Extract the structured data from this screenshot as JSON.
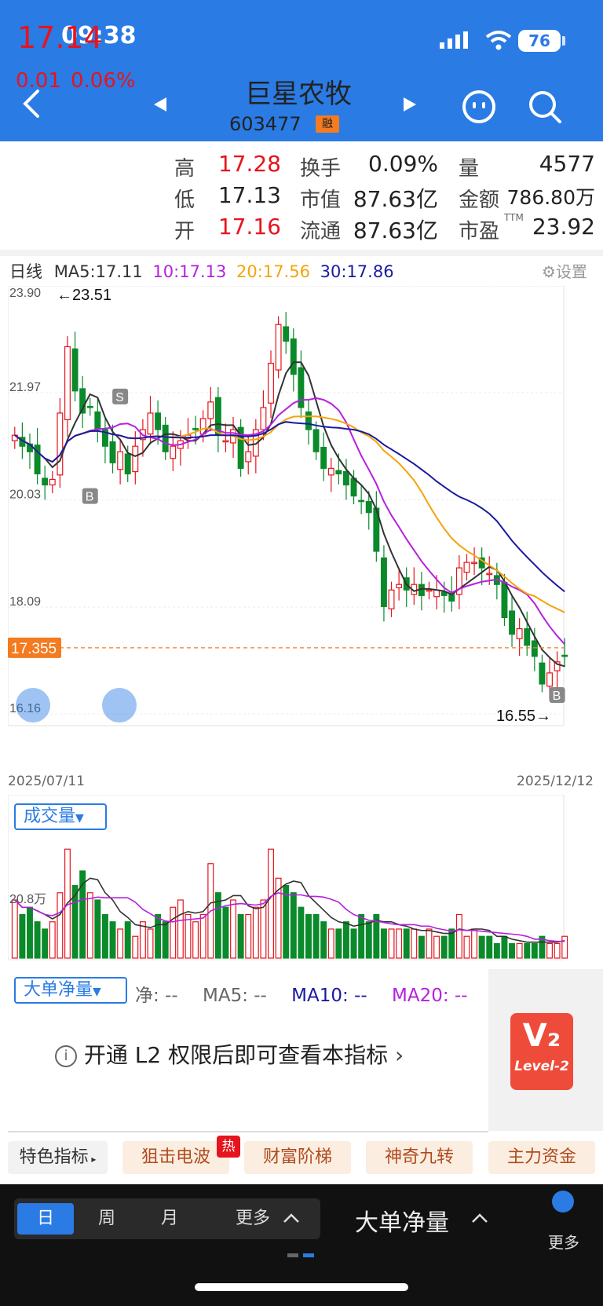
{
  "status_bar": {
    "time": "09:38",
    "battery": "76"
  },
  "header": {
    "stock_name": "巨星农牧",
    "stock_code": "603477",
    "margin_badge": "融"
  },
  "quote": {
    "price": "17.14",
    "change": "0.01",
    "change_pct": "0.06%",
    "high_label": "高",
    "high": "17.28",
    "low_label": "低",
    "low": "17.13",
    "open_label": "开",
    "open": "17.16",
    "turnover_label": "换手",
    "turnover": "0.09%",
    "mktcap_label": "市值",
    "mktcap": "87.63亿",
    "float_label": "流通",
    "float_cap": "87.63亿",
    "volume_label": "量",
    "volume": "4577",
    "amount_label": "金额",
    "amount": "786.80万",
    "pe_label": "市盈",
    "pe_sup": "TTM",
    "pe": "23.92"
  },
  "indicators": {
    "period_label": "日线",
    "ma5": "MA5:17.11",
    "ma10": "10:17.13",
    "ma20": "20:17.56",
    "ma30": "30:17.86",
    "settings": "设置"
  },
  "colors": {
    "ma5": "#333333",
    "ma10": "#b620e0",
    "ma20": "#f5a40a",
    "ma30": "#1a1aa0",
    "up": "#e6141e",
    "down": "#0a8a2a",
    "brand": "#2a7be4"
  },
  "chart_data": {
    "type": "candlestick",
    "y_ticks": [
      "23.90",
      "21.97",
      "20.03",
      "18.09",
      "16.16"
    ],
    "ylim": [
      16.16,
      23.9
    ],
    "x_start": "2025/07/11",
    "x_end": "2025/12/12",
    "high_annotation": "←23.51",
    "low_annotation": "16.55→",
    "current_line": "17.355",
    "markers": [
      "S",
      "B",
      "B"
    ],
    "close_approx": [
      21.2,
      21.0,
      20.9,
      20.5,
      20.3,
      20.4,
      21.6,
      22.8,
      22.0,
      21.6,
      21.7,
      21.3,
      21.0,
      20.7,
      20.9,
      20.5,
      21.0,
      21.3,
      21.6,
      21.3,
      20.9,
      21.0,
      21.1,
      21.2,
      21.3,
      21.5,
      21.8,
      21.2,
      21.1,
      21.3,
      20.6,
      20.9,
      21.3,
      21.7,
      22.5,
      23.2,
      22.9,
      22.3,
      21.7,
      21.3,
      20.9,
      20.6,
      20.6,
      20.5,
      20.3,
      20.1,
      20.0,
      19.8,
      19.1,
      18.1,
      18.4,
      18.5,
      18.4,
      18.5,
      18.3,
      18.4,
      18.4,
      18.3,
      18.2,
      18.8,
      18.9,
      18.9,
      18.8,
      18.7,
      18.5,
      17.9,
      17.6,
      17.7,
      17.4,
      17.2,
      16.7,
      16.9,
      17.1,
      17.2
    ],
    "volume": {
      "label": "成交量",
      "scale_tick": "20.8万",
      "bars": [
        8,
        6,
        7,
        5,
        4,
        5,
        9,
        15,
        10,
        12,
        9,
        8,
        6,
        5,
        4,
        5,
        3,
        5,
        4,
        6,
        5,
        7,
        8,
        6,
        5,
        6,
        13,
        9,
        7,
        8,
        6,
        6,
        7,
        8,
        15,
        11,
        10,
        9,
        7,
        6,
        6,
        5,
        4,
        4,
        5,
        4,
        6,
        5,
        6,
        4,
        4,
        4,
        4,
        4,
        3,
        4,
        3,
        3,
        4,
        6,
        3,
        4,
        3,
        3,
        2,
        3,
        2,
        2,
        2,
        2,
        3,
        2,
        2,
        3
      ]
    }
  },
  "net_flow": {
    "label": "大单净量",
    "net": "净: --",
    "ma5": "MA5: --",
    "ma10": "MA10: --",
    "ma20": "MA20: --",
    "l2_tip": "开通 L2 权限后即可查看本指标",
    "l2_logo_text": "Level-2"
  },
  "features": {
    "label": "特色指标",
    "tabs": [
      "狙击电波",
      "财富阶梯",
      "神奇九转",
      "主力资金"
    ],
    "hot_badge": "热"
  },
  "bottom_bar": {
    "periods": [
      "日",
      "周",
      "月",
      "更多"
    ],
    "indicator": "大单净量",
    "more": "更多"
  }
}
